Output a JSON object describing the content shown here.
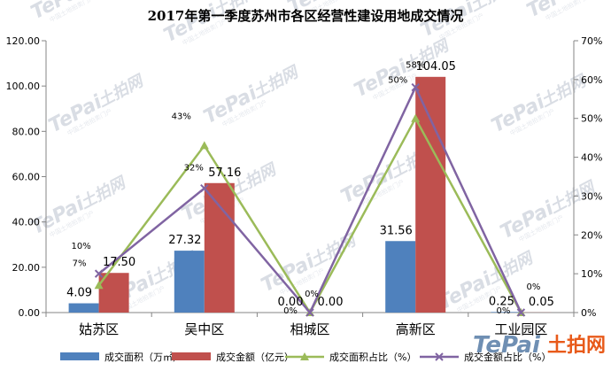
{
  "chart_data": {
    "type": "bar",
    "title": "2017年第一季度苏州市各区经营性建设用地成交情况",
    "categories": [
      "姑苏区",
      "吴中区",
      "相城区",
      "高新区",
      "工业园区"
    ],
    "y_left": {
      "min": 0,
      "max": 120,
      "step": 20,
      "tick_labels": [
        "0.00",
        "20.00",
        "40.00",
        "60.00",
        "80.00",
        "100.00",
        "120.00"
      ]
    },
    "y_right": {
      "min": 0,
      "max": 70,
      "step": 10,
      "tick_labels": [
        "0%",
        "10%",
        "20%",
        "30%",
        "40%",
        "50%",
        "60%",
        "70%"
      ]
    },
    "series": [
      {
        "name": "成交面积（万㎡）",
        "kind": "bar",
        "axis": "left",
        "color": "#4f81bd",
        "values": [
          4.09,
          27.32,
          0.0,
          31.56,
          0.25
        ],
        "labels": [
          "4.09",
          "27.32",
          "0.00",
          "31.56",
          "0.25"
        ]
      },
      {
        "name": "成交金额（亿元）",
        "kind": "bar",
        "axis": "left",
        "color": "#c0504d",
        "values": [
          17.5,
          57.16,
          0.0,
          104.05,
          0.05
        ],
        "labels": [
          "17.50",
          "57.16",
          "0.00",
          "104.05",
          "0.05"
        ]
      },
      {
        "name": "成交面积占比（%）",
        "kind": "line",
        "axis": "right",
        "color": "#9bbb59",
        "values": [
          7,
          43,
          0,
          50,
          0
        ],
        "labels": [
          "7%",
          "43%",
          "0%",
          "50%",
          "0%"
        ]
      },
      {
        "name": "成交金额占比（%）",
        "kind": "line",
        "axis": "right",
        "color": "#8064a2",
        "values": [
          10,
          32,
          0,
          58,
          0
        ],
        "labels": [
          "10%",
          "32%",
          "0%",
          "58%",
          "0%"
        ]
      }
    ],
    "grid": false,
    "legend": "bottom"
  },
  "watermark": {
    "brand": "TePai",
    "cn": "土拍网",
    "sub": "中国土地拍卖门户"
  },
  "colors": {
    "axis": "#868686",
    "text": "#000000"
  }
}
